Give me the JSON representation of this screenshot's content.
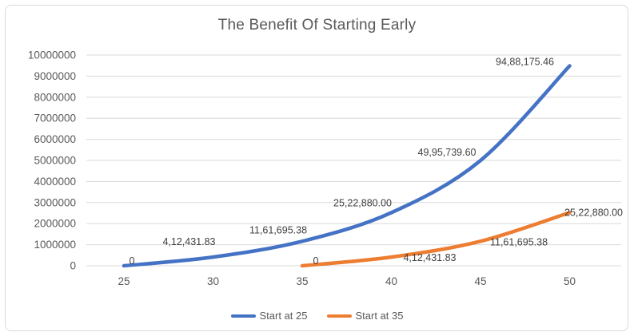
{
  "chart_data": {
    "type": "line",
    "title": "The Benefit Of Starting Early",
    "x_ticks": [
      25,
      30,
      35,
      40,
      45,
      50
    ],
    "y_ticks": [
      0,
      1000000,
      2000000,
      3000000,
      4000000,
      5000000,
      6000000,
      7000000,
      8000000,
      9000000,
      10000000
    ],
    "xlim": [
      25,
      50
    ],
    "ylim": [
      0,
      10000000
    ],
    "grid": "horizontal",
    "legend_position": "bottom-center",
    "gridline_color": "#D9D9D9",
    "border_color": "#D9D9D9",
    "axis_text_color": "#595959",
    "label_text_color": "#404040",
    "series": [
      {
        "name": "Start at 25",
        "color": "#4472C4",
        "x": [
          25,
          30,
          35,
          40,
          45,
          50
        ],
        "y": [
          0,
          412431.83,
          1161695.38,
          2522880.0,
          4995739.6,
          9488175.46
        ],
        "labels": [
          "0",
          "4,12,431.83",
          "11,61,695.38",
          "25,22,880.00",
          "49,95,739.60",
          "94,88,175.46"
        ],
        "label_offsets": [
          [
            10,
            -6
          ],
          [
            -30,
            -19
          ],
          [
            -30,
            -14
          ],
          [
            -36,
            -12
          ],
          [
            -42,
            -10
          ],
          [
            -56,
            -5
          ]
        ]
      },
      {
        "name": "Start at 35",
        "color": "#ED7D31",
        "x": [
          35,
          40,
          45,
          50
        ],
        "y": [
          0,
          412431.83,
          1161695.38,
          2522880.0
        ],
        "labels": [
          "0",
          "4,12,431.83",
          "11,61,695.38",
          "25,22,880.00"
        ],
        "label_offsets": [
          [
            17,
            -6
          ],
          [
            48,
            1
          ],
          [
            48,
            1
          ],
          [
            30,
            0
          ]
        ]
      }
    ]
  }
}
